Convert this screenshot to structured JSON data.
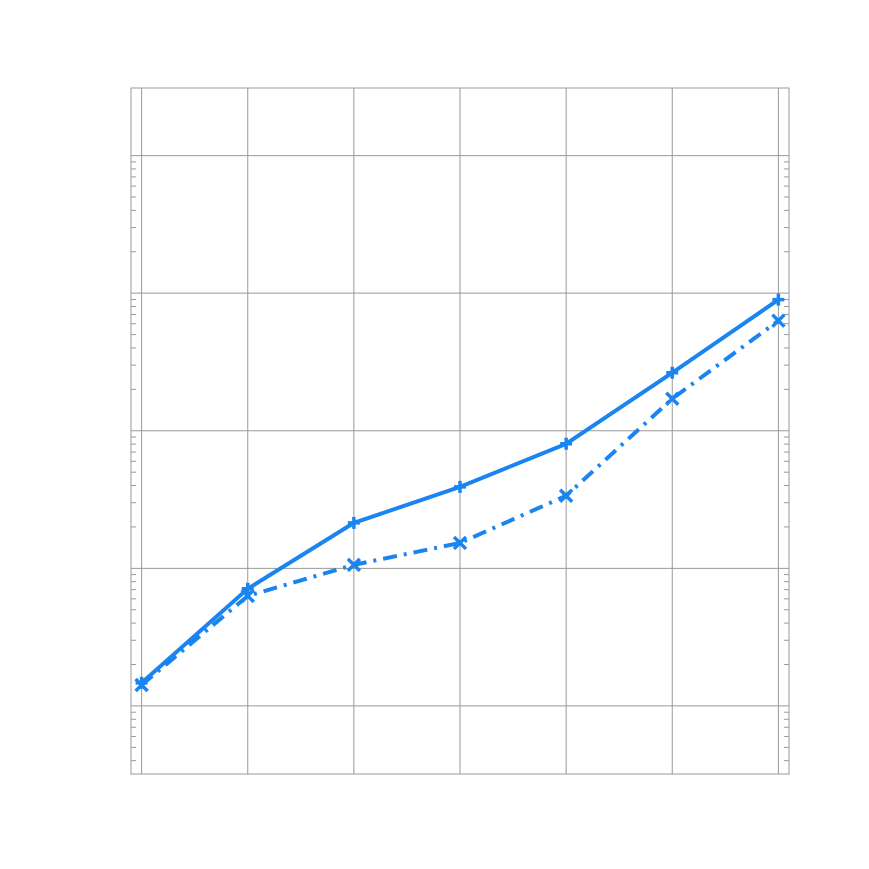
{
  "chart_data": {
    "type": "line",
    "x": [
      0,
      1,
      2,
      3,
      4,
      5,
      6
    ],
    "xlim": [
      -0.1,
      6.1
    ],
    "xticks": [
      0,
      1,
      2,
      3,
      4,
      5,
      6
    ],
    "ylim": [
      0.32,
      31000
    ],
    "yticks": [
      1,
      10,
      100,
      1000,
      10000
    ],
    "ylog": true,
    "grid": true,
    "series": [
      {
        "color": "#1a85f0",
        "linestyle": "solid",
        "marker": "plus",
        "values": [
          1.47,
          7.1,
          21.4,
          39.1,
          80.4,
          264,
          897
        ]
      },
      {
        "color": "#1a85f0",
        "linestyle": "dashdot",
        "marker": "x",
        "values": [
          1.42,
          6.3,
          10.6,
          15.3,
          33.7,
          171,
          631
        ]
      }
    ]
  }
}
